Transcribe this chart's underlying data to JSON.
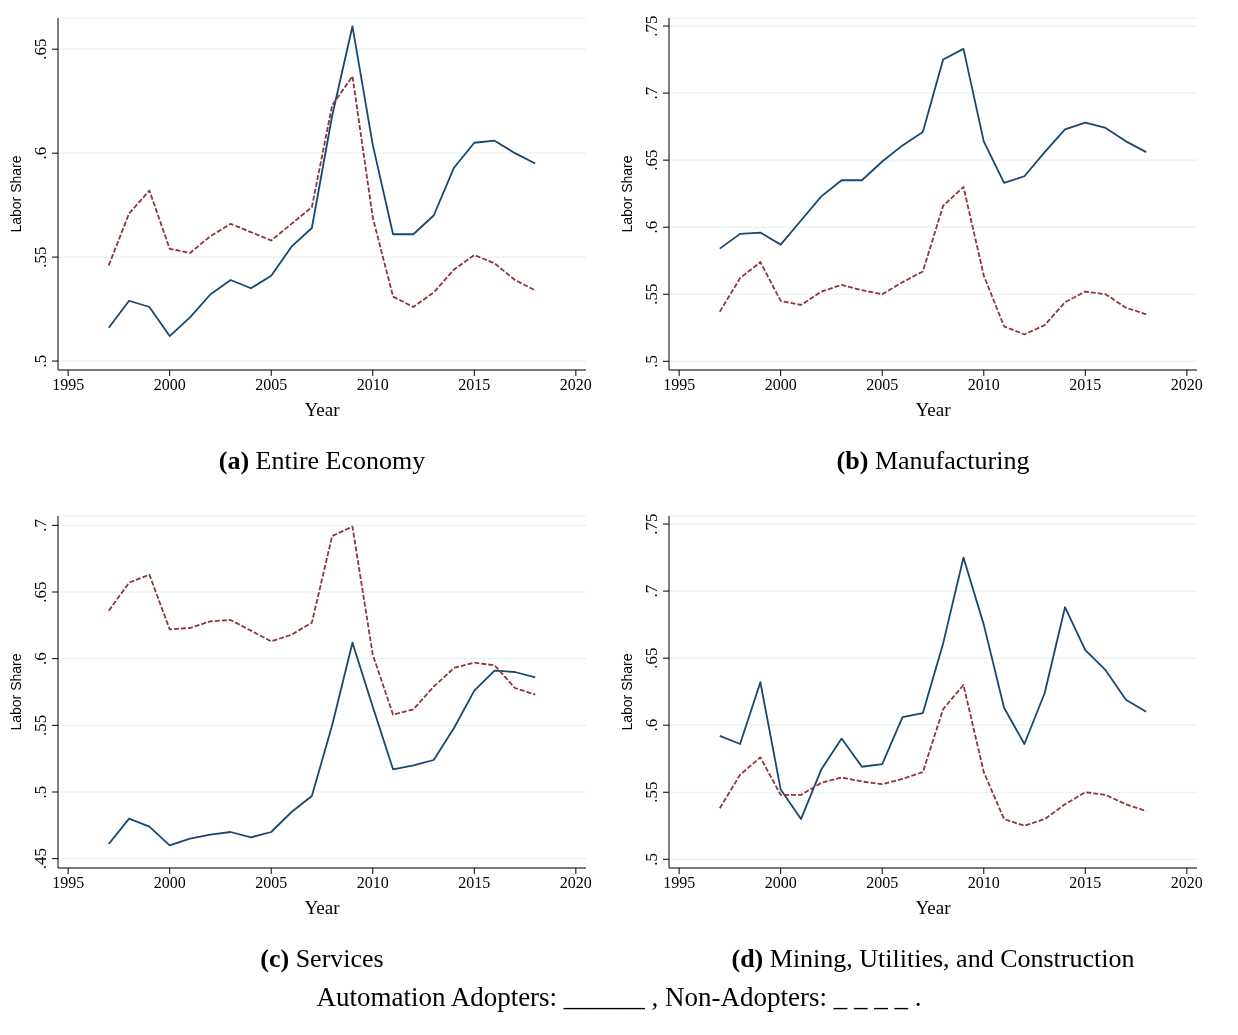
{
  "chart_data": [
    {
      "type": "line",
      "title": "(a) Entire Economy",
      "xlabel": "Year",
      "ylabel": "Labor Share",
      "x": [
        1997,
        1998,
        1999,
        2000,
        2001,
        2002,
        2003,
        2004,
        2005,
        2006,
        2007,
        2008,
        2009,
        2010,
        2011,
        2012,
        2013,
        2014,
        2015,
        2016,
        2017,
        2018
      ],
      "series": [
        {
          "color": "#1a476f",
          "line_style": "solid",
          "values": [
            0.516,
            0.529,
            0.526,
            0.512,
            0.521,
            0.532,
            0.539,
            0.535,
            0.541,
            0.555,
            0.564,
            0.618,
            0.661,
            0.604,
            0.561,
            0.561,
            0.57,
            0.593,
            0.605,
            0.606,
            0.6,
            0.595
          ]
        },
        {
          "color": "#90353b",
          "line_style": "dashed",
          "values": [
            0.546,
            0.571,
            0.582,
            0.554,
            0.552,
            0.56,
            0.566,
            0.562,
            0.558,
            0.566,
            0.574,
            0.623,
            0.637,
            0.569,
            0.531,
            0.526,
            0.533,
            0.544,
            0.551,
            0.547,
            0.539,
            0.534
          ]
        }
      ],
      "xlim": [
        1994.5,
        2020.5
      ],
      "xticks": [
        1995,
        2000,
        2005,
        2010,
        2015,
        2020
      ],
      "ylim": [
        0.4957,
        0.665
      ],
      "yticks": [
        {
          "value": 0.5,
          "label": ".5"
        },
        {
          "value": 0.55,
          "label": ".55"
        },
        {
          "value": 0.6,
          "label": ".6"
        },
        {
          "value": 0.65,
          "label": ".65"
        }
      ],
      "grid": "y",
      "legend": false
    },
    {
      "type": "line",
      "title": "(b) Manufacturing",
      "xlabel": "Year",
      "ylabel": "Labor Share",
      "x": [
        1997,
        1998,
        1999,
        2000,
        2001,
        2002,
        2003,
        2004,
        2005,
        2006,
        2007,
        2008,
        2009,
        2010,
        2011,
        2012,
        2013,
        2014,
        2015,
        2016,
        2017,
        2018
      ],
      "series": [
        {
          "color": "#1a476f",
          "line_style": "solid",
          "values": [
            0.584,
            0.595,
            0.596,
            0.587,
            0.605,
            0.623,
            0.635,
            0.635,
            0.649,
            0.661,
            0.671,
            0.725,
            0.733,
            0.664,
            0.633,
            0.638,
            0.656,
            0.673,
            0.678,
            0.674,
            0.664,
            0.656
          ]
        },
        {
          "color": "#90353b",
          "line_style": "dashed",
          "values": [
            0.537,
            0.562,
            0.574,
            0.545,
            0.542,
            0.552,
            0.557,
            0.553,
            0.55,
            0.559,
            0.567,
            0.616,
            0.63,
            0.564,
            0.526,
            0.52,
            0.527,
            0.544,
            0.552,
            0.55,
            0.54,
            0.535
          ]
        }
      ],
      "xlim": [
        1994.5,
        2020.5
      ],
      "xticks": [
        1995,
        2000,
        2005,
        2010,
        2015,
        2020
      ],
      "ylim": [
        0.4935,
        0.756
      ],
      "yticks": [
        {
          "value": 0.5,
          "label": ".5"
        },
        {
          "value": 0.55,
          "label": ".55"
        },
        {
          "value": 0.6,
          "label": ".6"
        },
        {
          "value": 0.65,
          "label": ".65"
        },
        {
          "value": 0.7,
          "label": ".7"
        },
        {
          "value": 0.75,
          "label": ".75"
        }
      ],
      "grid": "y",
      "legend": false
    },
    {
      "type": "line",
      "title": "(c) Services",
      "xlabel": "Year",
      "ylabel": "Labor Share",
      "x": [
        1997,
        1998,
        1999,
        2000,
        2001,
        2002,
        2003,
        2004,
        2005,
        2006,
        2007,
        2008,
        2009,
        2010,
        2011,
        2012,
        2013,
        2014,
        2015,
        2016,
        2017,
        2018
      ],
      "series": [
        {
          "color": "#1a476f",
          "line_style": "solid",
          "values": [
            0.461,
            0.48,
            0.474,
            0.46,
            0.465,
            0.468,
            0.47,
            0.466,
            0.47,
            0.485,
            0.497,
            0.55,
            0.612,
            0.564,
            0.517,
            0.52,
            0.524,
            0.548,
            0.576,
            0.591,
            0.59,
            0.586
          ]
        },
        {
          "color": "#90353b",
          "line_style": "dashed",
          "values": [
            0.636,
            0.657,
            0.663,
            0.622,
            0.623,
            0.628,
            0.629,
            0.621,
            0.613,
            0.618,
            0.627,
            0.692,
            0.699,
            0.603,
            0.558,
            0.562,
            0.579,
            0.593,
            0.597,
            0.595,
            0.578,
            0.573
          ]
        }
      ],
      "xlim": [
        1994.5,
        2020.5
      ],
      "xticks": [
        1995,
        2000,
        2005,
        2010,
        2015,
        2020
      ],
      "ylim": [
        0.443,
        0.707
      ],
      "yticks": [
        {
          "value": 0.45,
          "label": ".45"
        },
        {
          "value": 0.5,
          "label": ".5"
        },
        {
          "value": 0.55,
          "label": ".55"
        },
        {
          "value": 0.6,
          "label": ".6"
        },
        {
          "value": 0.65,
          "label": ".65"
        },
        {
          "value": 0.7,
          "label": ".7"
        }
      ],
      "grid": "y",
      "legend": false
    },
    {
      "type": "line",
      "title": "(d) Mining, Utilities, and Construction",
      "xlabel": "Year",
      "ylabel": "Labor Share",
      "x": [
        1997,
        1998,
        1999,
        2000,
        2001,
        2002,
        2003,
        2004,
        2005,
        2006,
        2007,
        2008,
        2009,
        2010,
        2011,
        2012,
        2013,
        2014,
        2015,
        2016,
        2017,
        2018
      ],
      "series": [
        {
          "color": "#1a476f",
          "line_style": "solid",
          "values": [
            0.592,
            0.586,
            0.632,
            0.552,
            0.53,
            0.567,
            0.59,
            0.569,
            0.571,
            0.606,
            0.609,
            0.661,
            0.725,
            0.675,
            0.613,
            0.586,
            0.624,
            0.688,
            0.656,
            0.641,
            0.619,
            0.61
          ]
        },
        {
          "color": "#90353b",
          "line_style": "dashed",
          "values": [
            0.538,
            0.563,
            0.576,
            0.548,
            0.548,
            0.557,
            0.561,
            0.558,
            0.556,
            0.56,
            0.565,
            0.612,
            0.63,
            0.565,
            0.53,
            0.525,
            0.53,
            0.541,
            0.55,
            0.548,
            0.541,
            0.536
          ]
        }
      ],
      "xlim": [
        1994.5,
        2020.5
      ],
      "xticks": [
        1995,
        2000,
        2005,
        2010,
        2015,
        2020
      ],
      "ylim": [
        0.4935,
        0.756
      ],
      "yticks": [
        {
          "value": 0.5,
          "label": ".5"
        },
        {
          "value": 0.55,
          "label": ".55"
        },
        {
          "value": 0.6,
          "label": ".6"
        },
        {
          "value": 0.65,
          "label": ".65"
        },
        {
          "value": 0.7,
          "label": ".7"
        },
        {
          "value": 0.75,
          "label": ".75"
        }
      ],
      "grid": "y",
      "legend": false,
      "annotations": [
        "Automation Adopters: ______ , Non-Adopters: _ _ _ _ ."
      ]
    }
  ]
}
